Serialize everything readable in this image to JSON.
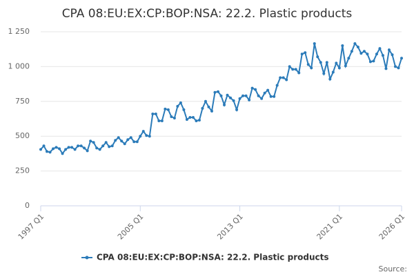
{
  "chart_data": {
    "type": "line",
    "title": "CPA 08:EU:EX:CP:BOP:NSA: 22.2. Plastic products",
    "source": "Source:",
    "categories": [
      "1997 Q1",
      null,
      null,
      null,
      null,
      null,
      null,
      null,
      null,
      null,
      null,
      null,
      null,
      null,
      null,
      null,
      null,
      null,
      null,
      null,
      null,
      null,
      null,
      null,
      null,
      null,
      null,
      null,
      null,
      null,
      null,
      null,
      "2005 Q1",
      null,
      null,
      null,
      null,
      null,
      null,
      null,
      null,
      null,
      null,
      null,
      null,
      null,
      null,
      null,
      null,
      null,
      null,
      null,
      null,
      null,
      null,
      null,
      null,
      null,
      null,
      null,
      null,
      null,
      null,
      null,
      "2013 Q1",
      null,
      null,
      null,
      null,
      null,
      null,
      null,
      null,
      null,
      null,
      null,
      null,
      null,
      null,
      null,
      null,
      null,
      null,
      null,
      null,
      null,
      null,
      null,
      null,
      null,
      null,
      null,
      null,
      null,
      null,
      null,
      "2021 Q1",
      null,
      null,
      null,
      null,
      null,
      null,
      null,
      null,
      null,
      null,
      null,
      null,
      null,
      null,
      null,
      null,
      null,
      null,
      null,
      "2026 Q1"
    ],
    "series": [
      {
        "name": "CPA 08:EU:EX:CP:BOP:NSA: 22.2. Plastic products",
        "color": "#2b7bb9",
        "values": [
          405,
          430,
          390,
          385,
          410,
          420,
          410,
          375,
          405,
          420,
          420,
          405,
          430,
          430,
          415,
          395,
          465,
          455,
          415,
          405,
          430,
          455,
          425,
          430,
          470,
          490,
          465,
          445,
          475,
          490,
          460,
          460,
          500,
          535,
          505,
          500,
          660,
          660,
          610,
          610,
          695,
          690,
          640,
          630,
          715,
          740,
          690,
          620,
          635,
          635,
          610,
          615,
          700,
          750,
          710,
          680,
          815,
          820,
          790,
          725,
          795,
          775,
          755,
          690,
          770,
          790,
          790,
          760,
          845,
          835,
          790,
          770,
          810,
          830,
          785,
          785,
          865,
          920,
          920,
          905,
          1000,
          980,
          980,
          955,
          1090,
          1100,
          1015,
          990,
          1165,
          1070,
          1030,
          950,
          1030,
          910,
          960,
          1025,
          990,
          1150,
          1005,
          1060,
          1110,
          1165,
          1140,
          1095,
          1110,
          1090,
          1035,
          1040,
          1090,
          1130,
          1080,
          985,
          1120,
          1085,
          1000,
          990,
          1060
        ]
      }
    ],
    "ylim": [
      0,
      1250
    ],
    "yticks": [
      0,
      250,
      500,
      750,
      {
        "value": 1000,
        "label": "1 000"
      },
      {
        "value": 1250,
        "label": "1 250"
      }
    ],
    "grid": true
  }
}
